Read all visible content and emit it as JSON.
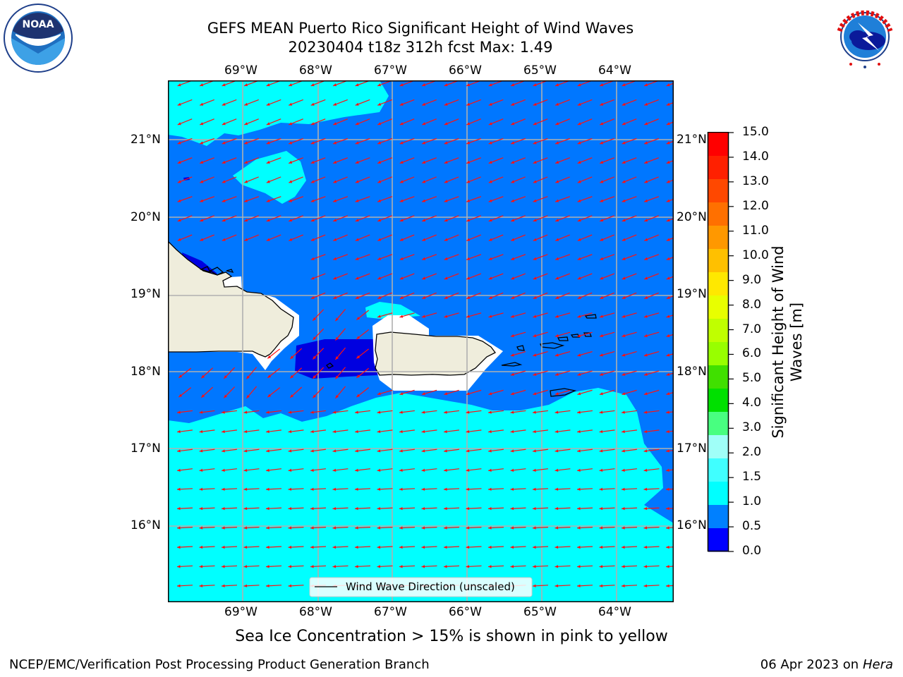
{
  "title": {
    "line1": "GEFS MEAN Puerto Rico Significant Height of Wind Waves",
    "line2": "20230404 t18z 312h fcst   Max: 1.49"
  },
  "logos": {
    "noaa": "NOAA",
    "noaa_ring": "NATIONAL OCEANIC AND ATMOSPHERIC ADMINISTRATION · U.S. DEPARTMENT OF COMMERCE",
    "nws_ring": "NATIONAL WEATHER SERVICE"
  },
  "map": {
    "lon_labels": [
      "69°W",
      "68°W",
      "67°W",
      "66°W",
      "65°W",
      "64°W"
    ],
    "lat_labels": [
      "21°N",
      "20°N",
      "19°N",
      "18°N",
      "17°N",
      "16°N"
    ],
    "legend_label": "Wind Wave Direction (unscaled)"
  },
  "colorbar": {
    "label": "Significant Height of Wind Waves [m]",
    "ticks": [
      "15.0",
      "14.0",
      "13.0",
      "12.0",
      "11.0",
      "10.0",
      "9.0",
      "8.0",
      "7.0",
      "6.0",
      "5.0",
      "4.0",
      "3.0",
      "2.0",
      "1.5",
      "1.0",
      "0.5",
      "0.0"
    ],
    "colors": [
      "#ff0000",
      "#ff2000",
      "#ff4800",
      "#ff7000",
      "#ff9800",
      "#ffc000",
      "#ffe800",
      "#e8ff00",
      "#c0ff00",
      "#98ff00",
      "#40e000",
      "#00e000",
      "#48ff80",
      "#a0fff8",
      "#40ffff",
      "#00ffff",
      "#0080ff",
      "#0000ff"
    ],
    "ocean_colors": {
      "low": "#0000e0",
      "mid": "#0077ff",
      "high": "#00ffff",
      "land": "#efeddc"
    }
  },
  "footer": {
    "ice_note": "Sea Ice Concentration > 15% is shown in pink to yellow",
    "branch": "NCEP/EMC/Verification Post Processing Product Generation Branch",
    "date": "06 Apr 2023 on ",
    "host": "Hera"
  }
}
